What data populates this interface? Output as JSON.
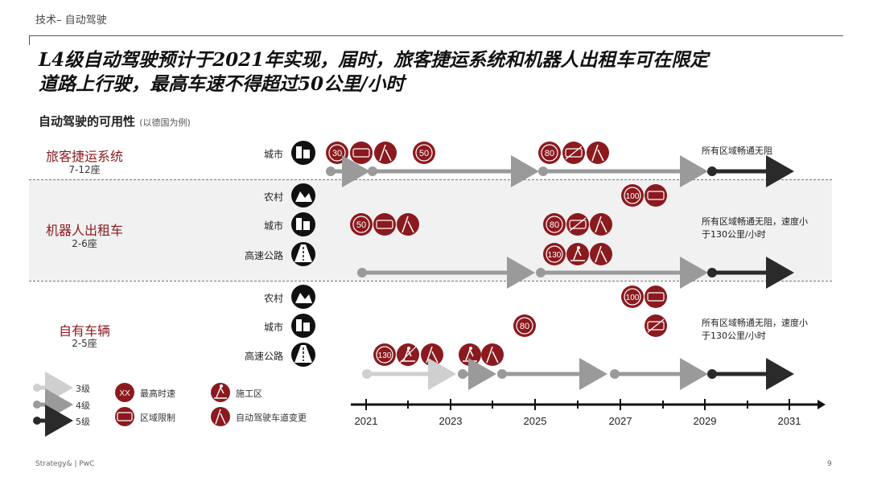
{
  "header": {
    "section": "技术– 自动驾驶"
  },
  "headline": {
    "line1": "L4级自动驾驶预计于2021年实现，届时，旅客捷运系统和机器人出租车可在限定",
    "line2": "道路上行驶，最高车速不得超过50公里/小时"
  },
  "subtitle": {
    "main": "自动驾驶的可用性",
    "note": "(以德国为例)"
  },
  "groups": [
    {
      "title": "旅客捷运系统",
      "seats": "7-12座"
    },
    {
      "title": "机器人出租车",
      "seats": "2-6座"
    },
    {
      "title": "自有车辆",
      "seats": "2-5座"
    }
  ],
  "rows": {
    "city": "城市",
    "rural": "农村",
    "highway": "高速公路"
  },
  "notes": {
    "shuttle": "所有区域畅通无阻",
    "robotaxi_1": "所有区域畅通无阻，速度小",
    "robotaxi_2": "于130公里/小时",
    "private_1": "所有区域畅通无阻，速度小",
    "private_2": "于130公里/小时"
  },
  "speed_signs": [
    "30",
    "50",
    "80",
    "100",
    "50",
    "80",
    "130",
    "100",
    "80",
    "130"
  ],
  "timeline": {
    "years": [
      "2021",
      "2023",
      "2025",
      "2027",
      "2029",
      "2031"
    ]
  },
  "legend": {
    "level3": "3级",
    "level4": "4级",
    "level5": "5级",
    "max_speed": "最高时速",
    "max_speed_sample": "XX",
    "restricted_area": "区域限制",
    "construction": "施工区",
    "lane_change": "自动驾驶车道变更"
  },
  "colors": {
    "accent": "#8b1a1f",
    "level3": "#cfcfcf",
    "level4": "#9a9a9a",
    "level5": "#2a2a2a"
  },
  "footer": {
    "brand": "Strategy& | PwC",
    "page": "9"
  }
}
